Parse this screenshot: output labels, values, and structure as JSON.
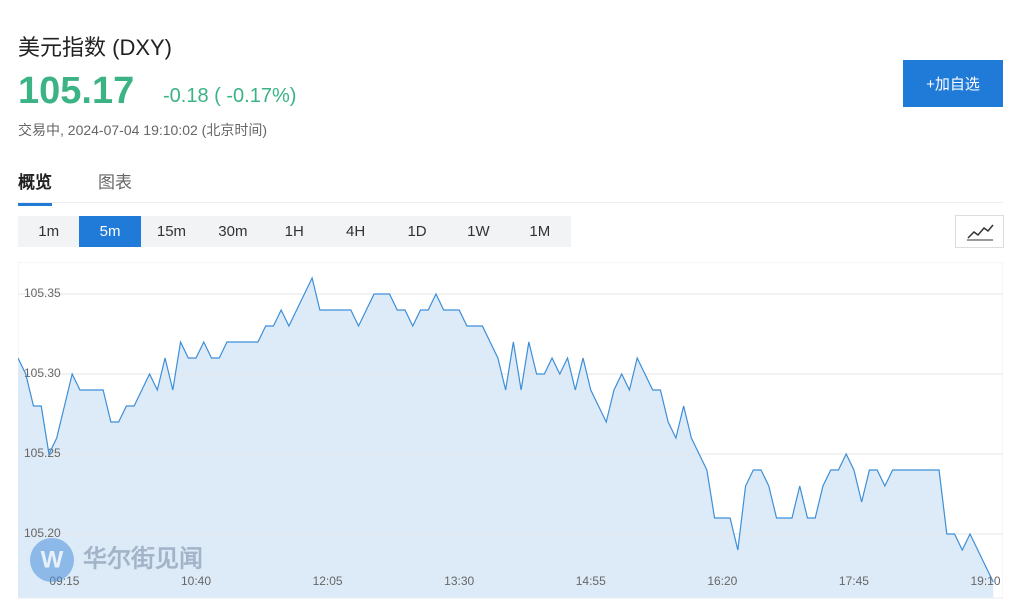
{
  "header": {
    "title": "美元指数 (DXY)",
    "price": "105.17",
    "change": "-0.18 ( -0.17%)",
    "status": "交易中, 2024-07-04 19:10:02 (北京时间)",
    "watchlist_button": "+加自选"
  },
  "tabs": {
    "items": [
      "概览",
      "图表"
    ],
    "selected": 0
  },
  "intervals": {
    "items": [
      "1m",
      "5m",
      "15m",
      "30m",
      "1H",
      "4H",
      "1D",
      "1W",
      "1M"
    ],
    "selected": 1
  },
  "watermark": "华尔街见闻",
  "chart_data": {
    "type": "area",
    "color": "#3d8fd8",
    "fill": "#ddebf8",
    "categories": [
      null,
      null,
      null,
      null,
      null,
      null,
      "09:15",
      null,
      null,
      null,
      null,
      null,
      null,
      null,
      null,
      null,
      null,
      null,
      null,
      null,
      null,
      null,
      null,
      "10:40",
      null,
      null,
      null,
      null,
      null,
      null,
      null,
      null,
      null,
      null,
      null,
      null,
      null,
      null,
      null,
      null,
      "12:05",
      null,
      null,
      null,
      null,
      null,
      null,
      null,
      null,
      null,
      null,
      null,
      null,
      null,
      null,
      null,
      null,
      "13:30",
      null,
      null,
      null,
      null,
      null,
      null,
      null,
      null,
      null,
      null,
      null,
      null,
      null,
      null,
      null,
      null,
      "14:55",
      null,
      null,
      null,
      null,
      null,
      null,
      null,
      null,
      null,
      null,
      null,
      null,
      null,
      null,
      null,
      null,
      "16:20",
      null,
      null,
      null,
      null,
      null,
      null,
      null,
      null,
      null,
      null,
      null,
      null,
      null,
      null,
      null,
      null,
      "17:45",
      null,
      null,
      null,
      null,
      null,
      null,
      null,
      null,
      null,
      null,
      null,
      null,
      null,
      null,
      null,
      null,
      "19:10",
      null
    ],
    "values": [
      105.31,
      105.3,
      105.28,
      105.28,
      105.25,
      105.26,
      105.28,
      105.3,
      105.29,
      105.29,
      105.29,
      105.29,
      105.27,
      105.27,
      105.28,
      105.28,
      105.29,
      105.3,
      105.29,
      105.31,
      105.29,
      105.32,
      105.31,
      105.31,
      105.32,
      105.31,
      105.31,
      105.32,
      105.32,
      105.32,
      105.32,
      105.32,
      105.33,
      105.33,
      105.34,
      105.33,
      105.34,
      105.35,
      105.36,
      105.34,
      105.34,
      105.34,
      105.34,
      105.34,
      105.33,
      105.34,
      105.35,
      105.35,
      105.35,
      105.34,
      105.34,
      105.33,
      105.34,
      105.34,
      105.35,
      105.34,
      105.34,
      105.34,
      105.33,
      105.33,
      105.33,
      105.32,
      105.31,
      105.29,
      105.32,
      105.29,
      105.32,
      105.3,
      105.3,
      105.31,
      105.3,
      105.31,
      105.29,
      105.31,
      105.29,
      105.28,
      105.27,
      105.29,
      105.3,
      105.29,
      105.31,
      105.3,
      105.29,
      105.29,
      105.27,
      105.26,
      105.28,
      105.26,
      105.25,
      105.24,
      105.21,
      105.21,
      105.21,
      105.19,
      105.23,
      105.24,
      105.24,
      105.23,
      105.21,
      105.21,
      105.21,
      105.23,
      105.21,
      105.21,
      105.23,
      105.24,
      105.24,
      105.25,
      105.24,
      105.22,
      105.24,
      105.24,
      105.23,
      105.24,
      105.24,
      105.24,
      105.24,
      105.24,
      105.24,
      105.24,
      105.2,
      105.2,
      105.19,
      105.2,
      105.19,
      105.18,
      105.17
    ],
    "ylim": [
      105.16,
      105.37
    ],
    "yticks": [
      {
        "value": 105.2,
        "label": "105.20"
      },
      {
        "value": 105.25,
        "label": "105.25"
      },
      {
        "value": 105.3,
        "label": "105.30"
      },
      {
        "value": 105.35,
        "label": "105.35"
      }
    ],
    "grid": true
  }
}
